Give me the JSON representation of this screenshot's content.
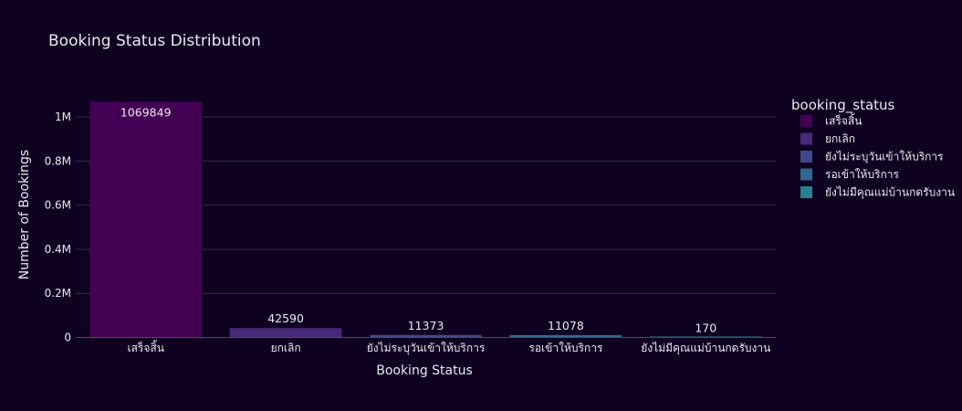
{
  "chart_data": {
    "type": "bar",
    "title": "Booking Status Distribution",
    "xlabel": "Booking Status",
    "ylabel": "Number of Bookings",
    "legend_title": "booking_status",
    "legend_position": "right",
    "categories": [
      "เสร็จสิ้น",
      "ยกเลิก",
      "ยังไม่ระบุวันเข้าให้บริการ",
      "รอเข้าให้บริการ",
      "ยังไม่มีคุณแม่บ้านกดรับงาน"
    ],
    "values": [
      1069849,
      42590,
      11373,
      11078,
      170
    ],
    "colors": [
      "#440154",
      "#482878",
      "#3e4989",
      "#31688e",
      "#26828e"
    ],
    "ylim": [
      0,
      1100000
    ],
    "yticks": [
      0,
      200000,
      400000,
      600000,
      800000,
      1000000
    ],
    "ytick_labels": [
      "0",
      "0.2M",
      "0.4M",
      "0.6M",
      "0.8M",
      "1M"
    ],
    "grid": true
  }
}
